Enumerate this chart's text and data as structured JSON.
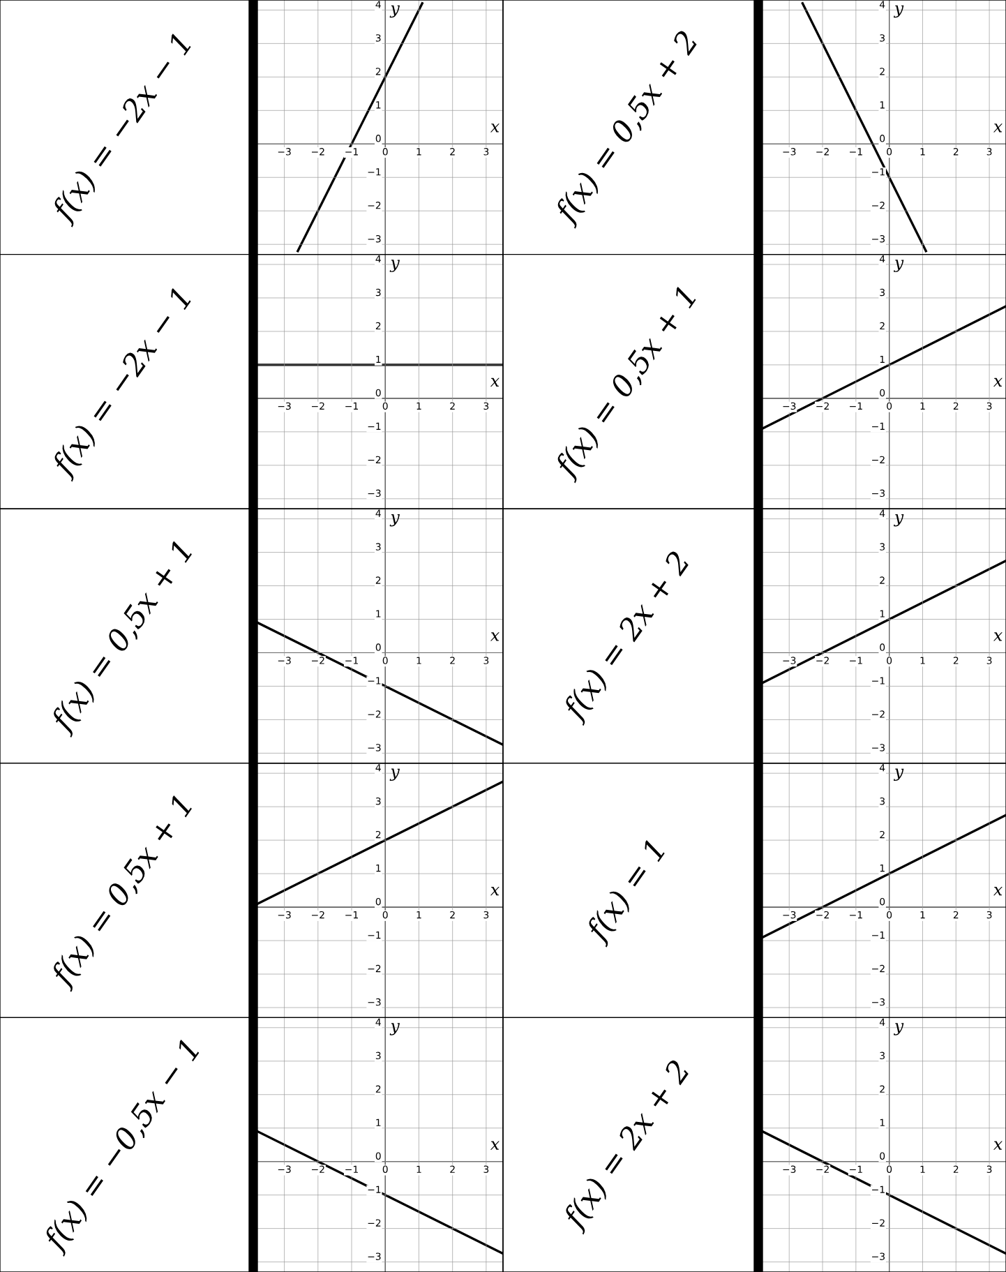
{
  "chart_data": [
    {
      "type": "other",
      "annotations": [
        "f(x) = −2x − 1"
      ]
    },
    {
      "type": "line",
      "x": [
        -2.6,
        1.1
      ],
      "values": [
        -3.2,
        4.2
      ],
      "color": "#000000",
      "xlabel": "x",
      "ylabel": "y",
      "xlim": [
        -3.8,
        3.5
      ],
      "ylim": [
        -3.3,
        4.3
      ],
      "xticks": [
        {
          "value": -3,
          "label": "−3"
        },
        {
          "value": -2,
          "label": "−2"
        },
        {
          "value": -1,
          "label": "−1"
        },
        0,
        1,
        2,
        3
      ],
      "yticks": [
        {
          "value": -3,
          "label": "−3"
        },
        {
          "value": -2,
          "label": "−2"
        },
        {
          "value": -1,
          "label": "−1"
        },
        0,
        1,
        2,
        3,
        4
      ],
      "grid": true
    },
    {
      "type": "other",
      "annotations": [
        "f(x) = 0,5x + 2"
      ]
    },
    {
      "type": "line",
      "x": [
        -2.6,
        1.1
      ],
      "values": [
        4.2,
        -3.2
      ],
      "color": "#000000",
      "xlabel": "x",
      "ylabel": "y",
      "xlim": [
        -3.8,
        3.5
      ],
      "ylim": [
        -3.3,
        4.3
      ],
      "xticks": [
        {
          "value": -3,
          "label": "−3"
        },
        {
          "value": -2,
          "label": "−2"
        },
        {
          "value": -1,
          "label": "−1"
        },
        0,
        1,
        2,
        3
      ],
      "yticks": [
        {
          "value": -3,
          "label": "−3"
        },
        {
          "value": -2,
          "label": "−2"
        },
        {
          "value": -1,
          "label": "−1"
        },
        0,
        1,
        2,
        3,
        4
      ],
      "grid": true
    },
    {
      "type": "other",
      "annotations": [
        "f(x) = −2x − 1"
      ]
    },
    {
      "type": "line",
      "x": [
        -3.8,
        3.5
      ],
      "values": [
        1,
        1
      ],
      "color": "#000000",
      "xlabel": "x",
      "ylabel": "y",
      "xlim": [
        -3.8,
        3.5
      ],
      "ylim": [
        -3.3,
        4.3
      ],
      "xticks": [
        {
          "value": -3,
          "label": "−3"
        },
        {
          "value": -2,
          "label": "−2"
        },
        {
          "value": -1,
          "label": "−1"
        },
        0,
        1,
        2,
        3
      ],
      "yticks": [
        {
          "value": -3,
          "label": "−3"
        },
        {
          "value": -2,
          "label": "−2"
        },
        {
          "value": -1,
          "label": "−1"
        },
        0,
        1,
        2,
        3,
        4
      ],
      "grid": true
    },
    {
      "type": "other",
      "annotations": [
        "f(x) = 0,5x + 1"
      ]
    },
    {
      "type": "line",
      "x": [
        -3.8,
        3.5
      ],
      "values": [
        -0.9,
        2.75
      ],
      "color": "#000000",
      "xlabel": "x",
      "ylabel": "y",
      "xlim": [
        -3.8,
        3.5
      ],
      "ylim": [
        -3.3,
        4.3
      ],
      "xticks": [
        {
          "value": -3,
          "label": "−3"
        },
        {
          "value": -2,
          "label": "−2"
        },
        {
          "value": -1,
          "label": "−1"
        },
        0,
        1,
        2,
        3
      ],
      "yticks": [
        {
          "value": -3,
          "label": "−3"
        },
        {
          "value": -2,
          "label": "−2"
        },
        {
          "value": -1,
          "label": "−1"
        },
        0,
        1,
        2,
        3,
        4
      ],
      "grid": true
    },
    {
      "type": "other",
      "annotations": [
        "f(x) = 0,5x + 1"
      ]
    },
    {
      "type": "line",
      "x": [
        -3.8,
        3.5
      ],
      "values": [
        0.9,
        -2.75
      ],
      "color": "#000000",
      "xlabel": "x",
      "ylabel": "y",
      "xlim": [
        -3.8,
        3.5
      ],
      "ylim": [
        -3.3,
        4.3
      ],
      "xticks": [
        {
          "value": -3,
          "label": "−3"
        },
        {
          "value": -2,
          "label": "−2"
        },
        {
          "value": -1,
          "label": "−1"
        },
        0,
        1,
        2,
        3
      ],
      "yticks": [
        {
          "value": -3,
          "label": "−3"
        },
        {
          "value": -2,
          "label": "−2"
        },
        {
          "value": -1,
          "label": "−1"
        },
        0,
        1,
        2,
        3,
        4
      ],
      "grid": true
    },
    {
      "type": "other",
      "annotations": [
        "f(x) = 2x + 2"
      ]
    },
    {
      "type": "line",
      "x": [
        -3.8,
        3.5
      ],
      "values": [
        -0.9,
        2.75
      ],
      "color": "#000000",
      "xlabel": "x",
      "ylabel": "y",
      "xlim": [
        -3.8,
        3.5
      ],
      "ylim": [
        -3.3,
        4.3
      ],
      "xticks": [
        {
          "value": -3,
          "label": "−3"
        },
        {
          "value": -2,
          "label": "−2"
        },
        {
          "value": -1,
          "label": "−1"
        },
        0,
        1,
        2,
        3
      ],
      "yticks": [
        {
          "value": -3,
          "label": "−3"
        },
        {
          "value": -2,
          "label": "−2"
        },
        {
          "value": -1,
          "label": "−1"
        },
        0,
        1,
        2,
        3,
        4
      ],
      "grid": true
    },
    {
      "type": "other",
      "annotations": [
        "f(x) = 0,5x + 1"
      ]
    },
    {
      "type": "line",
      "x": [
        -3.8,
        3.5
      ],
      "values": [
        0.1,
        3.75
      ],
      "color": "#000000",
      "xlabel": "x",
      "ylabel": "y",
      "xlim": [
        -3.8,
        3.5
      ],
      "ylim": [
        -3.3,
        4.3
      ],
      "xticks": [
        {
          "value": -3,
          "label": "−3"
        },
        {
          "value": -2,
          "label": "−2"
        },
        {
          "value": -1,
          "label": "−1"
        },
        0,
        1,
        2,
        3
      ],
      "yticks": [
        {
          "value": -3,
          "label": "−3"
        },
        {
          "value": -2,
          "label": "−2"
        },
        {
          "value": -1,
          "label": "−1"
        },
        0,
        1,
        2,
        3,
        4
      ],
      "grid": true
    },
    {
      "type": "other",
      "annotations": [
        "f(x) = 1"
      ]
    },
    {
      "type": "line",
      "x": [
        -3.8,
        3.5
      ],
      "values": [
        -0.9,
        2.75
      ],
      "color": "#000000",
      "xlabel": "x",
      "ylabel": "y",
      "xlim": [
        -3.8,
        3.5
      ],
      "ylim": [
        -3.3,
        4.3
      ],
      "xticks": [
        {
          "value": -3,
          "label": "−3"
        },
        {
          "value": -2,
          "label": "−2"
        },
        {
          "value": -1,
          "label": "−1"
        },
        0,
        1,
        2,
        3
      ],
      "yticks": [
        {
          "value": -3,
          "label": "−3"
        },
        {
          "value": -2,
          "label": "−2"
        },
        {
          "value": -1,
          "label": "−1"
        },
        0,
        1,
        2,
        3,
        4
      ],
      "grid": true
    },
    {
      "type": "other",
      "annotations": [
        "f(x) = −0,5x − 1"
      ]
    },
    {
      "type": "line",
      "x": [
        -3.8,
        3.5
      ],
      "values": [
        0.9,
        -2.75
      ],
      "color": "#000000",
      "xlabel": "x",
      "ylabel": "y",
      "xlim": [
        -3.8,
        3.5
      ],
      "ylim": [
        -3.3,
        4.3
      ],
      "xticks": [
        {
          "value": -3,
          "label": "−3"
        },
        {
          "value": -2,
          "label": "−2"
        },
        {
          "value": -1,
          "label": "−1"
        },
        0,
        1,
        2,
        3
      ],
      "yticks": [
        {
          "value": -3,
          "label": "−3"
        },
        {
          "value": -2,
          "label": "−2"
        },
        {
          "value": -1,
          "label": "−1"
        },
        0,
        1,
        2,
        3,
        4
      ],
      "grid": true
    },
    {
      "type": "other",
      "annotations": [
        "f(x) = 2x + 2"
      ]
    },
    {
      "type": "line",
      "x": [
        -3.8,
        3.5
      ],
      "values": [
        0.9,
        -2.75
      ],
      "color": "#000000",
      "xlabel": "x",
      "ylabel": "y",
      "xlim": [
        -3.8,
        3.5
      ],
      "ylim": [
        -3.3,
        4.3
      ],
      "xticks": [
        {
          "value": -3,
          "label": "−3"
        },
        {
          "value": -2,
          "label": "−2"
        },
        {
          "value": -1,
          "label": "−1"
        },
        0,
        1,
        2,
        3
      ],
      "yticks": [
        {
          "value": -3,
          "label": "−3"
        },
        {
          "value": -2,
          "label": "−2"
        },
        {
          "value": -1,
          "label": "−1"
        },
        0,
        1,
        2,
        3,
        4
      ],
      "grid": true
    }
  ]
}
